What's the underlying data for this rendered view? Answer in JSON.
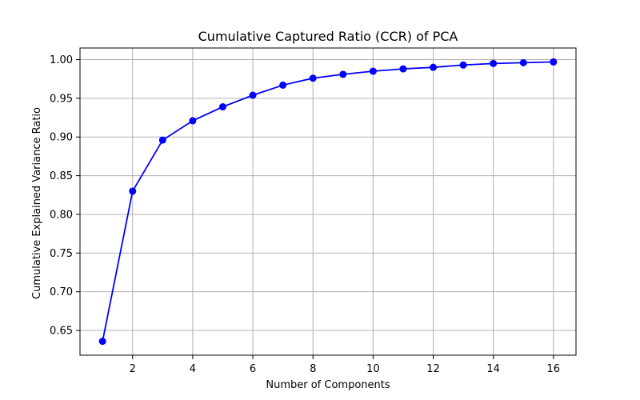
{
  "chart_data": {
    "type": "line",
    "title": "Cumulative Captured Ratio (CCR) of PCA",
    "xlabel": "Number of Components",
    "ylabel": "Cumulative Explained Variance Ratio",
    "x": [
      1,
      2,
      3,
      4,
      5,
      6,
      7,
      8,
      9,
      10,
      11,
      12,
      13,
      14,
      15,
      16
    ],
    "series": [
      {
        "values": [
          0.636,
          0.83,
          0.896,
          0.921,
          0.939,
          0.954,
          0.967,
          0.976,
          0.981,
          0.985,
          0.988,
          0.99,
          0.993,
          0.995,
          0.996,
          0.997
        ],
        "color": "#0000ff",
        "marker": "circle"
      }
    ],
    "xlim": [
      0.25,
      16.75
    ],
    "ylim": [
      0.618,
      1.015
    ],
    "xticks": [
      2,
      4,
      6,
      8,
      10,
      12,
      14,
      16
    ],
    "xtick_labels": [
      "2",
      "4",
      "6",
      "8",
      "10",
      "12",
      "14",
      "16"
    ],
    "yticks": [
      0.65,
      0.7,
      0.75,
      0.8,
      0.85,
      0.9,
      0.95,
      1.0
    ],
    "ytick_labels": [
      "0.65",
      "0.70",
      "0.75",
      "0.80",
      "0.85",
      "0.90",
      "0.95",
      "1.00"
    ],
    "grid": true,
    "axis_color": "#000000",
    "grid_color": "#b0b0b0"
  }
}
